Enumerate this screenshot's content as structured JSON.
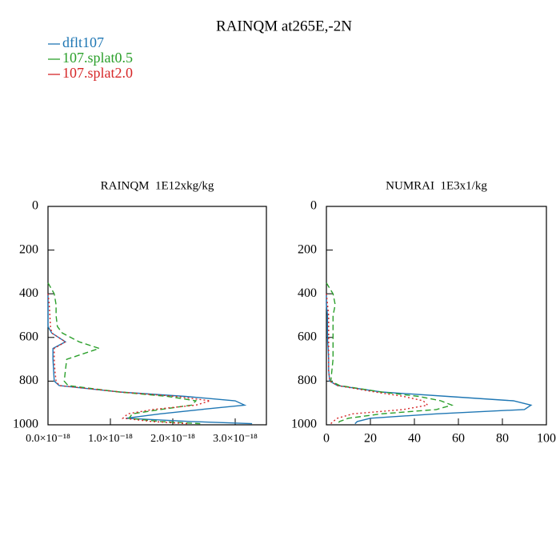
{
  "title": "RAINQM at265E,-2N",
  "chart_data": [
    {
      "type": "profile",
      "title": "RAINQM  1E12xkg/kg",
      "y": [
        350,
        400,
        450,
        500,
        550,
        580,
        620,
        650,
        700,
        750,
        800,
        820,
        850,
        870,
        890,
        910,
        930,
        950,
        970,
        985,
        995
      ],
      "xlim": [
        0,
        3.5e-18
      ],
      "ylim": [
        1000,
        0
      ],
      "xticks": [
        {
          "value": 0,
          "label": "0.0×10⁻¹⁸"
        },
        {
          "value": 1e-18,
          "label": "1.0×10⁻¹⁸"
        },
        {
          "value": 2e-18,
          "label": "2.0×10⁻¹⁸"
        },
        {
          "value": 3e-18,
          "label": "3.0×10⁻¹⁸"
        }
      ],
      "yticks": [
        0,
        200,
        400,
        600,
        800,
        1000
      ],
      "series": [
        {
          "name": "dflt107",
          "color": "#1f77b4",
          "dash": "solid",
          "values": [
            null,
            0,
            0,
            0,
            0,
            6e-20,
            2.8e-19,
            8e-20,
            8e-20,
            9e-20,
            1e-19,
            1.8e-19,
            1.15e-18,
            2.2e-18,
            3e-18,
            3.15e-18,
            2.45e-18,
            1.8e-18,
            1.25e-18,
            2.3e-18,
            3.27e-18
          ]
        },
        {
          "name": "107.splat0.5",
          "color": "#2ca02c",
          "dash": "dashed",
          "values": [
            0,
            1e-19,
            1.3e-19,
            1.3e-19,
            1.5e-19,
            2.3e-19,
            5e-19,
            8.2e-19,
            3e-19,
            2.8e-19,
            2.6e-19,
            3.2e-19,
            1.15e-18,
            1.92e-18,
            2.37e-18,
            2.3e-18,
            1.8e-18,
            1.35e-18,
            1.3e-18,
            1.8e-18,
            2.44e-18
          ]
        },
        {
          "name": "107.splat2.0",
          "color": "#d62728",
          "dash": "dotted",
          "values": [
            null,
            0,
            2e-20,
            3e-20,
            4e-20,
            6e-20,
            2.8e-19,
            1e-19,
            1e-19,
            1.1e-19,
            1.3e-19,
            1.8e-19,
            1.15e-18,
            2.05e-18,
            2.6e-18,
            2.37e-18,
            1.67e-18,
            1.28e-18,
            1.2e-18,
            1.67e-18,
            2.24e-18
          ]
        }
      ]
    },
    {
      "type": "profile",
      "title": "NUMRAI  1E3x1/kg",
      "y": [
        350,
        400,
        450,
        500,
        550,
        580,
        620,
        650,
        700,
        750,
        800,
        820,
        850,
        870,
        890,
        910,
        930,
        950,
        970,
        985,
        995
      ],
      "xlim": [
        0,
        100
      ],
      "ylim": [
        1000,
        0
      ],
      "xticks": [
        0,
        20,
        40,
        60,
        80,
        100
      ],
      "yticks": [
        0,
        200,
        400,
        600,
        800,
        1000
      ],
      "series": [
        {
          "color": "#1f77b4",
          "dash": "solid",
          "values": [
            null,
            0,
            0,
            0.5,
            0.5,
            0.5,
            0.6,
            0.8,
            1,
            1,
            1.5,
            5,
            25,
            55,
            85,
            93,
            90,
            50,
            20,
            14,
            13
          ]
        },
        {
          "color": "#2ca02c",
          "dash": "dashed",
          "values": [
            0,
            3,
            4,
            3,
            3,
            3,
            3,
            3,
            3,
            2.5,
            2,
            6,
            25,
            42,
            52,
            57,
            50,
            25,
            10,
            6,
            5
          ]
        },
        {
          "color": "#d62728",
          "dash": "dotted",
          "values": [
            null,
            0,
            0.5,
            1,
            1,
            1,
            1,
            1,
            1,
            1,
            1.5,
            5,
            22,
            35,
            44,
            46,
            35,
            12,
            5,
            3,
            2
          ]
        }
      ]
    }
  ]
}
